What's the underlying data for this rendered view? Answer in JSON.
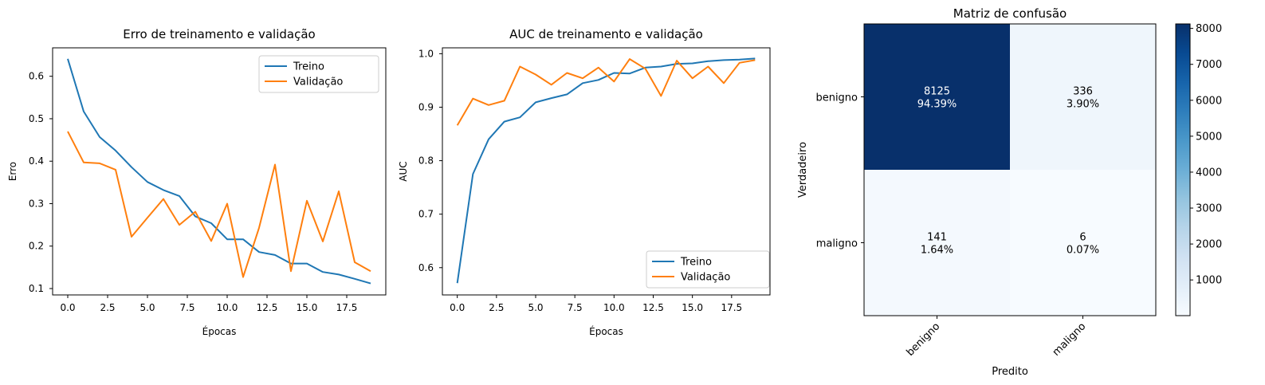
{
  "chart_data": [
    {
      "type": "line",
      "title": "Erro de treinamento e validação",
      "xlabel": "Épocas",
      "ylabel": "Erro",
      "xlim": [
        -0.95,
        19.95
      ],
      "ylim": [
        0.085,
        0.667
      ],
      "xticks": [
        0,
        2.5,
        5,
        7.5,
        10,
        12.5,
        15,
        17.5
      ],
      "xtick_labels": [
        "0.0",
        "2.5",
        "5.0",
        "7.5",
        "10.0",
        "12.5",
        "15.0",
        "17.5"
      ],
      "yticks": [
        0.1,
        0.2,
        0.3,
        0.4,
        0.5,
        0.6
      ],
      "ytick_labels": [
        "0.1",
        "0.2",
        "0.3",
        "0.4",
        "0.5",
        "0.6"
      ],
      "legend_position": "top-right",
      "x": [
        0,
        1,
        2,
        3,
        4,
        5,
        6,
        7,
        8,
        9,
        10,
        11,
        12,
        13,
        14,
        15,
        16,
        17,
        18,
        19
      ],
      "series": [
        {
          "name": "Treino",
          "color": "#1f77b4",
          "values": [
            0.641,
            0.517,
            0.457,
            0.425,
            0.386,
            0.351,
            0.332,
            0.318,
            0.27,
            0.254,
            0.216,
            0.216,
            0.186,
            0.179,
            0.159,
            0.159,
            0.139,
            0.133,
            0.123,
            0.112
          ]
        },
        {
          "name": "Validação",
          "color": "#ff7f0e",
          "values": [
            0.47,
            0.397,
            0.395,
            0.38,
            0.222,
            0.267,
            0.311,
            0.25,
            0.281,
            0.212,
            0.3,
            0.127,
            0.243,
            0.392,
            0.141,
            0.307,
            0.211,
            0.329,
            0.162,
            0.141
          ]
        }
      ]
    },
    {
      "type": "line",
      "title": "AUC de treinamento e validação",
      "xlabel": "Épocas",
      "ylabel": "AUC",
      "xlim": [
        -0.95,
        19.95
      ],
      "ylim": [
        0.549,
        1.011
      ],
      "xticks": [
        0,
        2.5,
        5,
        7.5,
        10,
        12.5,
        15,
        17.5
      ],
      "xtick_labels": [
        "0.0",
        "2.5",
        "5.0",
        "7.5",
        "10.0",
        "12.5",
        "15.0",
        "17.5"
      ],
      "yticks": [
        0.6,
        0.7,
        0.8,
        0.9,
        1.0
      ],
      "ytick_labels": [
        "0.6",
        "0.7",
        "0.8",
        "0.9",
        "1.0"
      ],
      "legend_position": "bottom-right",
      "x": [
        0,
        1,
        2,
        3,
        4,
        5,
        6,
        7,
        8,
        9,
        10,
        11,
        12,
        13,
        14,
        15,
        16,
        17,
        18,
        19
      ],
      "series": [
        {
          "name": "Treino",
          "color": "#1f77b4",
          "values": [
            0.571,
            0.775,
            0.84,
            0.873,
            0.881,
            0.909,
            0.917,
            0.924,
            0.945,
            0.951,
            0.964,
            0.963,
            0.974,
            0.976,
            0.981,
            0.982,
            0.986,
            0.988,
            0.989,
            0.991
          ]
        },
        {
          "name": "Validação",
          "color": "#ff7f0e",
          "values": [
            0.866,
            0.916,
            0.904,
            0.912,
            0.976,
            0.961,
            0.942,
            0.964,
            0.954,
            0.974,
            0.948,
            0.99,
            0.972,
            0.921,
            0.987,
            0.954,
            0.976,
            0.945,
            0.983,
            0.988
          ]
        }
      ]
    },
    {
      "type": "heatmap",
      "title": "Matriz de confusão",
      "xlabel": "Predito",
      "ylabel": "Verdadeiro",
      "row_labels": [
        "benigno",
        "maligno"
      ],
      "col_labels": [
        "benigno",
        "maligno"
      ],
      "values": [
        [
          8125,
          336
        ],
        [
          141,
          6
        ]
      ],
      "percent_labels": [
        [
          "94.39%",
          "3.90%"
        ],
        [
          "1.64%",
          "0.07%"
        ]
      ],
      "colormap": "Blues",
      "colorbar_ticks": [
        1000,
        2000,
        3000,
        4000,
        5000,
        6000,
        7000,
        8000
      ],
      "colorbar_tick_labels": [
        "1000",
        "2000",
        "3000",
        "4000",
        "5000",
        "6000",
        "7000",
        "8000"
      ]
    }
  ]
}
